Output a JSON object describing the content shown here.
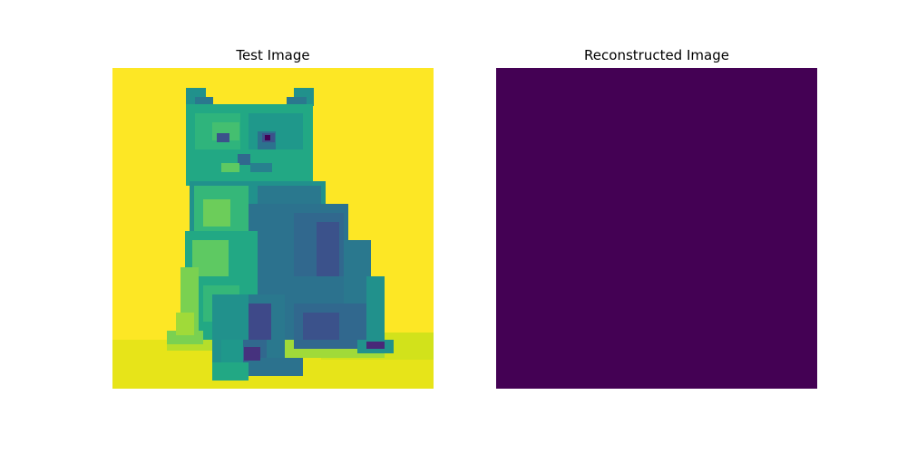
{
  "figure": {
    "panels": [
      {
        "title": "Test Image",
        "content": "pixelated grayscale cat photo rendered with viridis colormap",
        "colormap": "viridis",
        "background_color": "#fde725"
      },
      {
        "title": "Reconstructed Image",
        "content": "uniform solid fill",
        "colormap": "viridis",
        "fill_color": "#440154"
      }
    ]
  }
}
